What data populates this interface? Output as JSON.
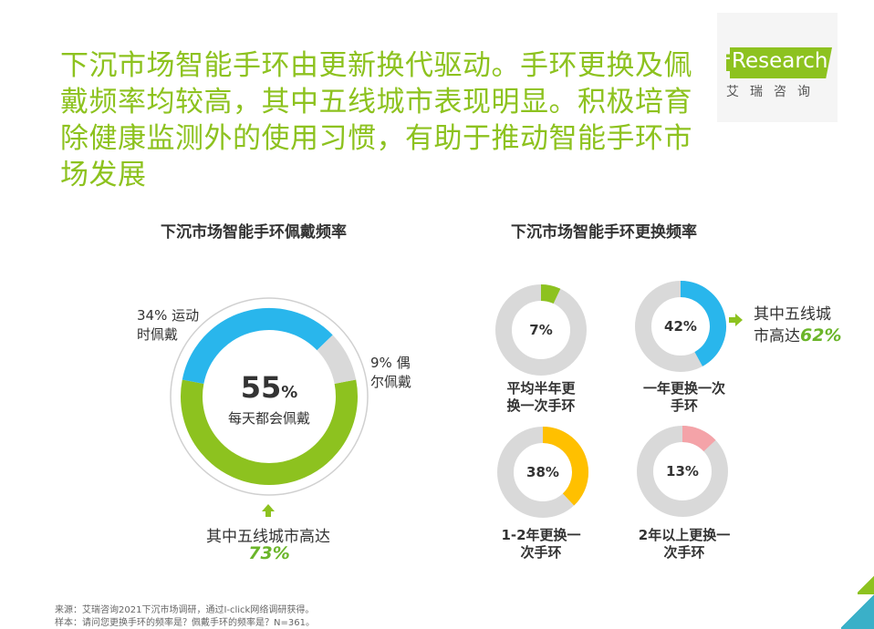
{
  "headline": "下沉市场智能手环由更新换代驱动。手环更换及佩戴频率均较高，其中五线城市表现明显。积极培育除健康监测外的使用习惯，有助于推动智能手环市场发展",
  "logo": {
    "i": "i",
    "word": "Research",
    "cn": "艾瑞咨询"
  },
  "colors": {
    "green": "#8dc21f",
    "blue": "#29b6ec",
    "gray": "#d9d9d9",
    "yellow": "#ffc000",
    "pink": "#f4a3a8"
  },
  "left_panel": {
    "title": "下沉市场智能手环佩戴频率",
    "center_value": "55",
    "center_unit": "%",
    "center_label": "每天都会佩戴",
    "label_sport_1": "34% 运动",
    "label_sport_2": "时佩戴",
    "label_occ_1": "9% 偶",
    "label_occ_2": "尔佩戴",
    "callout_text": "其中五线城市高达",
    "callout_value": "73%"
  },
  "right_panel": {
    "title": "下沉市场智能手环更换频率",
    "callout_text_1": "其中五线城",
    "callout_text_2": "市高达",
    "callout_value": "62%",
    "donuts": [
      {
        "pct": "7%",
        "cap1": "平均半年更",
        "cap2": "换一次手环"
      },
      {
        "pct": "42%",
        "cap1": "一年更换一次",
        "cap2": "手环"
      },
      {
        "pct": "38%",
        "cap1": "1-2年更换一",
        "cap2": "次手环"
      },
      {
        "pct": "13%",
        "cap1": "2年以上更换一",
        "cap2": "次手环"
      }
    ]
  },
  "chart_data": [
    {
      "type": "pie",
      "title": "下沉市场智能手环佩戴频率",
      "categories": [
        "每天都会佩戴",
        "运动时佩戴",
        "偶尔佩戴"
      ],
      "values": [
        55,
        34,
        9
      ],
      "unit": "%"
    },
    {
      "type": "pie",
      "title": "下沉市场智能手环更换频率",
      "categories": [
        "平均半年更换一次手环",
        "一年更换一次手环",
        "1-2年更换一次手环",
        "2年以上更换一次手环"
      ],
      "values": [
        7,
        42,
        38,
        13
      ],
      "unit": "%"
    }
  ],
  "notes": {
    "source": "来源：艾瑞咨询2021下沉市场调研，通过I-click网络调研获得。",
    "sample": "样本：请问您更换手环的频率是？佩戴手环的频率是？N=361。"
  }
}
